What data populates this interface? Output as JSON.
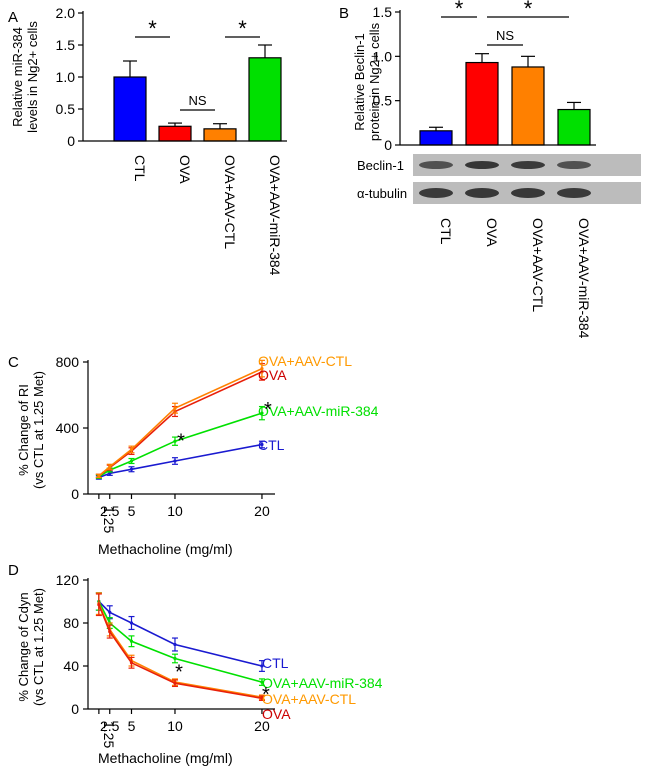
{
  "panel_labels": {
    "a": "A",
    "b": "B",
    "c": "C",
    "d": "D"
  },
  "colors": {
    "ctl": "#0000ff",
    "ova": "#ff0000",
    "ova_ctl": "#ff8000",
    "mir": "#00e000",
    "ova_line": "#e8200a",
    "ctl_line": "#1a1ad0",
    "ova_ctl_label": "#ff9900",
    "ova_label": "#cc0000"
  },
  "chart_data": [
    {
      "id": "A",
      "type": "bar",
      "ylabel": "Relative miR-384 levels in Ng2+ cells",
      "ylabel_lines": [
        "Relative miR-384",
        "levels in Ng2+ cells"
      ],
      "categories": [
        "CTL",
        "OVA",
        "OVA+AAV-CTL",
        "OVA+AAV-miR-384"
      ],
      "values": [
        1.0,
        0.23,
        0.19,
        1.3
      ],
      "errors": [
        0.25,
        0.05,
        0.08,
        0.2
      ],
      "ylim": [
        0,
        2.0
      ],
      "yticks": [
        "0",
        "0.5",
        "1.0",
        "1.5",
        "2.0"
      ],
      "annotations": [
        {
          "text": "*",
          "between": [
            "CTL",
            "OVA"
          ]
        },
        {
          "text": "NS",
          "between": [
            "OVA",
            "OVA+AAV-CTL"
          ]
        },
        {
          "text": "*",
          "between": [
            "OVA+AAV-CTL",
            "OVA+AAV-miR-384"
          ]
        }
      ]
    },
    {
      "id": "B",
      "type": "bar",
      "ylabel": "Relative Beclin-1 protein in Ng2+ cells",
      "ylabel_lines": [
        "Relative Beclin-1",
        "protein in Ng2+ cells"
      ],
      "categories": [
        "CTL",
        "OVA",
        "OVA+AAV-CTL",
        "OVA+AAV-miR-384"
      ],
      "values": [
        0.16,
        0.93,
        0.88,
        0.4
      ],
      "errors": [
        0.04,
        0.1,
        0.12,
        0.08
      ],
      "ylim": [
        0,
        1.5
      ],
      "yticks": [
        "0",
        "0.5",
        "1.0",
        "1.5"
      ],
      "annotations": [
        {
          "text": "*",
          "between": [
            "CTL",
            "OVA"
          ]
        },
        {
          "text": "NS",
          "between": [
            "OVA",
            "OVA+AAV-CTL"
          ]
        },
        {
          "text": "*",
          "between": [
            "OVA",
            "OVA+AAV-miR-384"
          ]
        }
      ],
      "blots": [
        "Beclin-1",
        "α-tubulin"
      ]
    },
    {
      "id": "C",
      "type": "line",
      "ylabel": "% Change of RI (vs CTL at 1.25 Met)",
      "ylabel_lines": [
        "% Change of RI",
        "(vs CTL at 1.25 Met)"
      ],
      "xlabel": "Methacholine (mg/ml)",
      "x": [
        1.25,
        2.5,
        5,
        10,
        20
      ],
      "xticks": [
        "1.25",
        "2.5",
        "5",
        "10",
        "20"
      ],
      "xlim": [
        0,
        21.5
      ],
      "ylim": [
        0,
        800
      ],
      "yticks": [
        "0",
        "400",
        "800"
      ],
      "series": [
        {
          "name": "CTL",
          "color_key": "ctl_line",
          "values": [
            100,
            125,
            150,
            200,
            300
          ],
          "errors": [
            10,
            12,
            15,
            20,
            20
          ]
        },
        {
          "name": "OVA+AAV-miR-384",
          "color_key": "mir",
          "values": [
            105,
            145,
            200,
            320,
            490
          ],
          "errors": [
            10,
            12,
            15,
            25,
            40
          ]
        },
        {
          "name": "OVA",
          "color_key": "ova_line",
          "values": [
            110,
            160,
            260,
            500,
            740
          ],
          "errors": [
            10,
            15,
            20,
            30,
            50
          ]
        },
        {
          "name": "OVA+AAV-CTL",
          "color_key": "ova_ctl",
          "values": [
            110,
            165,
            270,
            520,
            760
          ],
          "errors": [
            10,
            15,
            20,
            30,
            50
          ]
        }
      ],
      "legend_labels": [
        {
          "text": "OVA+AAV-CTL",
          "color_key": "ova_ctl_label"
        },
        {
          "text": "OVA",
          "color_key": "ova_label"
        },
        {
          "text": "OVA+AAV-miR-384",
          "color_key": "mir"
        },
        {
          "text": "CTL",
          "color_key": "ctl_line"
        }
      ],
      "annotations": [
        {
          "text": "*",
          "x": 10,
          "y": 330
        },
        {
          "text": "*",
          "x": 20,
          "y": 520
        }
      ]
    },
    {
      "id": "D",
      "type": "line",
      "ylabel": "% Change of Cdyn (vs CTL at 1.25 Met)",
      "ylabel_lines": [
        "% Change of Cdyn",
        "(vs CTL at 1.25 Met)"
      ],
      "xlabel": "Methacholine (mg/ml)",
      "x": [
        1.25,
        2.5,
        5,
        10,
        20
      ],
      "xticks": [
        "1.25",
        "2.5",
        "5",
        "10",
        "20"
      ],
      "xlim": [
        0,
        21.5
      ],
      "ylim": [
        0,
        120
      ],
      "yticks": [
        "0",
        "40",
        "80",
        "120"
      ],
      "series": [
        {
          "name": "CTL",
          "color_key": "ctl_line",
          "values": [
            100,
            90,
            80,
            60,
            40
          ],
          "errors": [
            8,
            6,
            6,
            6,
            5
          ]
        },
        {
          "name": "OVA+AAV-miR-384",
          "color_key": "mir",
          "values": [
            100,
            80,
            63,
            47,
            25
          ],
          "errors": [
            8,
            5,
            5,
            4,
            3
          ]
        },
        {
          "name": "OVA+AAV-CTL",
          "color_key": "ova_ctl",
          "values": [
            98,
            74,
            45,
            25,
            11
          ],
          "errors": [
            10,
            6,
            5,
            3,
            2
          ]
        },
        {
          "name": "OVA",
          "color_key": "ova_line",
          "values": [
            97,
            72,
            43,
            24,
            10
          ],
          "errors": [
            10,
            6,
            5,
            3,
            2
          ]
        }
      ],
      "legend_labels": [
        {
          "text": "CTL",
          "color_key": "ctl_line"
        },
        {
          "text": "OVA+AAV-miR-384",
          "color_key": "mir"
        },
        {
          "text": "OVA+AAV-CTL",
          "color_key": "ova_ctl_label"
        },
        {
          "text": "OVA",
          "color_key": "ova_label"
        }
      ],
      "annotations": [
        {
          "text": "*",
          "x": 10,
          "y": 36
        },
        {
          "text": "*",
          "x": 20,
          "y": 15
        }
      ]
    }
  ]
}
